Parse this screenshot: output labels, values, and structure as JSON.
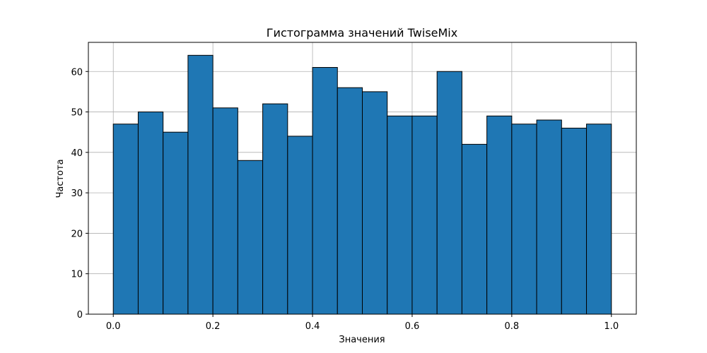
{
  "chart_data": {
    "type": "bar",
    "title": "Гистограмма значений TwiseMix",
    "xlabel": "Значения",
    "ylabel": "Частота",
    "bin_edges": [
      0.0,
      0.05,
      0.1,
      0.15,
      0.2,
      0.25,
      0.3,
      0.35,
      0.4,
      0.45,
      0.5,
      0.55,
      0.6,
      0.65,
      0.7,
      0.75,
      0.8,
      0.85,
      0.9,
      0.95,
      1.0
    ],
    "values": [
      47,
      50,
      45,
      64,
      51,
      38,
      52,
      44,
      61,
      56,
      55,
      49,
      49,
      60,
      42,
      49,
      47,
      48,
      46,
      47
    ],
    "xlim": [
      -0.05,
      1.05
    ],
    "ylim": [
      0,
      67.2
    ],
    "xticks": [
      "0.0",
      "0.2",
      "0.4",
      "0.6",
      "0.8",
      "1.0"
    ],
    "yticks": [
      "0",
      "10",
      "20",
      "30",
      "40",
      "50",
      "60"
    ],
    "grid": true,
    "colors": {
      "bar_fill": "#1f77b4",
      "bar_edge": "#000000",
      "grid": "#b0b0b0"
    }
  }
}
